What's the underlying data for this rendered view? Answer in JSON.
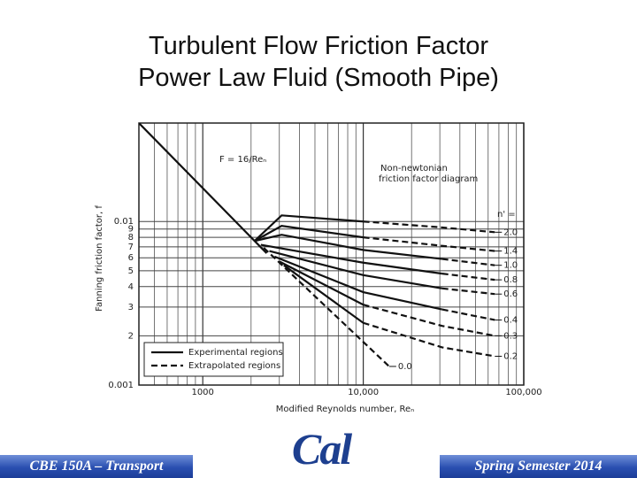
{
  "slide": {
    "title": [
      "Turbulent Flow Friction Factor",
      "Power Law Fluid (Smooth Pipe)"
    ],
    "footer_left": "CBE 150A – Transport",
    "footer_right": "Spring Semester 2014",
    "logo": "Cal"
  },
  "chart_data": {
    "type": "line",
    "xlabel": "Modified Reynolds number, Reₙ",
    "ylabel": "Fanning friction factor, f",
    "xscale": "log",
    "yscale": "log",
    "xlim": [
      400,
      100000
    ],
    "ylim": [
      0.001,
      0.04
    ],
    "xticks": [
      1000,
      {
        "value": 10000,
        "label": "10,000"
      },
      {
        "value": 100000,
        "label": "100,000"
      }
    ],
    "xminorticks": [
      500,
      600,
      700,
      800,
      900,
      2000,
      3000,
      4000,
      5000,
      6000,
      7000,
      8000,
      9000,
      20000,
      30000,
      40000,
      50000,
      60000,
      70000,
      80000,
      90000
    ],
    "yticks": [
      0.001,
      {
        "value": 0.002,
        "label": "2"
      },
      {
        "value": 0.003,
        "label": "3"
      },
      {
        "value": 0.004,
        "label": "4"
      },
      {
        "value": 0.005,
        "label": "5"
      },
      {
        "value": 0.006,
        "label": "6"
      },
      {
        "value": 0.007,
        "label": "7"
      },
      {
        "value": 0.008,
        "label": "8"
      },
      {
        "value": 0.009,
        "label": "9"
      },
      0.01
    ],
    "grid": true,
    "legend_position": "lower left",
    "legend": [
      {
        "label": "Experimental regions",
        "style": "solid"
      },
      {
        "label": "Extrapolated regions",
        "style": "dashed"
      }
    ],
    "annotations": {
      "laminar": "F = 16/Reₙ",
      "diagram": [
        "Non-newtonian",
        "friction factor diagram"
      ],
      "n_header": "n' ="
    },
    "series": [
      {
        "style": "solid",
        "x": [
          400,
          2500
        ],
        "values": [
          0.04,
          0.0064
        ]
      },
      {
        "style": "solid",
        "x": [
          2100,
          3100,
          10000
        ],
        "values": [
          0.0076,
          0.0109,
          0.01
        ]
      },
      {
        "name": "2.0",
        "style": "dashed",
        "x": [
          10000,
          31000,
          66000
        ],
        "values": [
          0.01,
          0.0092,
          0.0086
        ]
      },
      {
        "style": "solid",
        "x": [
          2100,
          3100,
          10000
        ],
        "values": [
          0.0076,
          0.0094,
          0.008
        ]
      },
      {
        "name": "1.4",
        "style": "dashed",
        "x": [
          10000,
          31000,
          66000
        ],
        "values": [
          0.008,
          0.0071,
          0.0066
        ]
      },
      {
        "style": "solid",
        "x": [
          2100,
          3100,
          10000,
          31000
        ],
        "values": [
          0.0076,
          0.0083,
          0.0067,
          0.0059
        ]
      },
      {
        "name": "1.0",
        "style": "dashed",
        "x": [
          31000,
          66000
        ],
        "values": [
          0.0059,
          0.0054
        ]
      },
      {
        "style": "solid",
        "x": [
          2300,
          10000,
          31000
        ],
        "values": [
          0.0072,
          0.0056,
          0.0048
        ]
      },
      {
        "name": "0.8",
        "style": "dashed",
        "x": [
          31000,
          66000
        ],
        "values": [
          0.0048,
          0.0044
        ]
      },
      {
        "style": "solid",
        "x": [
          2600,
          10000,
          31000
        ],
        "values": [
          0.0066,
          0.0047,
          0.0039
        ]
      },
      {
        "name": "0.6",
        "style": "dashed",
        "x": [
          31000,
          66000
        ],
        "values": [
          0.0039,
          0.0036
        ]
      },
      {
        "style": "solid",
        "x": [
          2800,
          10000,
          31000
        ],
        "values": [
          0.0061,
          0.0037,
          0.0029
        ]
      },
      {
        "name": "0.4",
        "style": "dashed",
        "x": [
          31000,
          66000
        ],
        "values": [
          0.0029,
          0.0025
        ]
      },
      {
        "style": "solid",
        "x": [
          3000,
          10000
        ],
        "values": [
          0.0057,
          0.0031
        ]
      },
      {
        "name": "0.3",
        "style": "dashed",
        "x": [
          10000,
          31000,
          66000
        ],
        "values": [
          0.0031,
          0.0023,
          0.002
        ]
      },
      {
        "style": "solid",
        "x": [
          3200,
          10000
        ],
        "values": [
          0.0054,
          0.0024
        ]
      },
      {
        "name": "0.2",
        "style": "dashed",
        "x": [
          10000,
          31000,
          66000
        ],
        "values": [
          0.0024,
          0.0017,
          0.0015
        ]
      },
      {
        "name": "0.0",
        "style": "dashed",
        "x": [
          2400,
          14500
        ],
        "values": [
          0.0069,
          0.0013
        ]
      }
    ]
  }
}
